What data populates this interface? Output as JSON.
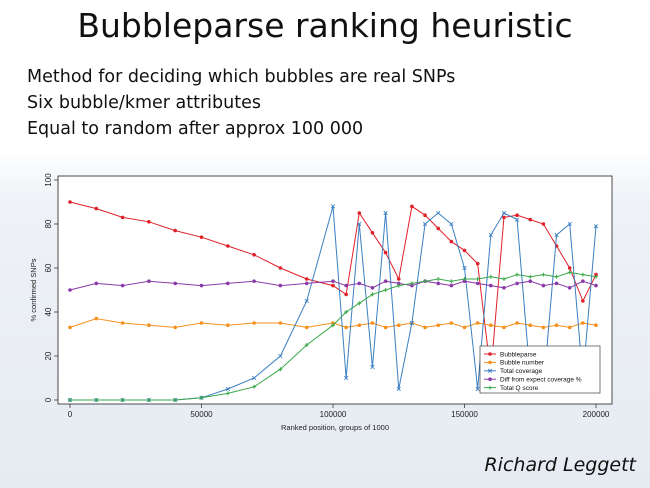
{
  "slide": {
    "title": "Bubbleparse ranking heuristic",
    "bullets": [
      "Method for deciding which bubbles are real SNPs",
      "Six bubble/kmer attributes",
      "Equal to random after approx 100 000"
    ],
    "author": "Richard Leggett"
  },
  "chart_data": {
    "type": "line",
    "xlabel": "Ranked position, groups of 1000",
    "ylabel": "% confirmed SNPs",
    "xlim": [
      0,
      200000
    ],
    "ylim": [
      0,
      100
    ],
    "x_ticks": [
      "0",
      "50000",
      "100000",
      "150000",
      "200000"
    ],
    "y_ticks": [
      "0",
      "20",
      "40",
      "60",
      "80",
      "100"
    ],
    "x": [
      0,
      10000,
      20000,
      30000,
      40000,
      50000,
      60000,
      70000,
      80000,
      90000,
      100000,
      105000,
      110000,
      115000,
      120000,
      125000,
      130000,
      135000,
      140000,
      145000,
      150000,
      155000,
      160000,
      165000,
      170000,
      175000,
      180000,
      185000,
      190000,
      195000,
      200000
    ],
    "series": [
      {
        "name": "Bubbleparse",
        "color": "#e0202a",
        "marker": "dot",
        "values": [
          90,
          87,
          83,
          81,
          77,
          74,
          70,
          66,
          60,
          55,
          52,
          48,
          85,
          76,
          67,
          55,
          88,
          84,
          78,
          72,
          68,
          62,
          12,
          83,
          84,
          82,
          80,
          70,
          60,
          45,
          57
        ]
      },
      {
        "name": "Bubble number",
        "color": "#f5901e",
        "marker": "dot",
        "values": [
          33,
          37,
          35,
          34,
          33,
          35,
          34,
          35,
          35,
          33,
          35,
          33,
          34,
          35,
          33,
          34,
          35,
          33,
          34,
          35,
          33,
          35,
          34,
          33,
          35,
          34,
          33,
          34,
          33,
          35,
          34
        ]
      },
      {
        "name": "Total coverage",
        "color": "#3a7fc1",
        "marker": "x",
        "values": [
          0,
          0,
          0,
          0,
          0,
          1,
          5,
          10,
          20,
          45,
          88,
          10,
          80,
          15,
          85,
          5,
          35,
          80,
          85,
          80,
          60,
          5,
          75,
          85,
          82,
          10,
          5,
          75,
          80,
          10,
          79
        ]
      },
      {
        "name": "Diff from expect coverage %",
        "color": "#8a3aa8",
        "marker": "dot",
        "values": [
          50,
          53,
          52,
          54,
          53,
          52,
          53,
          54,
          52,
          53,
          54,
          52,
          53,
          51,
          54,
          53,
          52,
          54,
          53,
          52,
          54,
          53,
          52,
          51,
          53,
          54,
          52,
          53,
          51,
          54,
          52
        ]
      },
      {
        "name": "Total Q score",
        "color": "#3aa84a",
        "marker": "plus",
        "values": [
          0,
          0,
          0,
          0,
          0,
          1,
          3,
          6,
          14,
          25,
          34,
          40,
          44,
          48,
          50,
          52,
          53,
          54,
          55,
          54,
          55,
          55,
          56,
          55,
          57,
          56,
          57,
          56,
          58,
          57,
          56
        ]
      }
    ],
    "legend_position": "lower-right",
    "grid": false
  }
}
